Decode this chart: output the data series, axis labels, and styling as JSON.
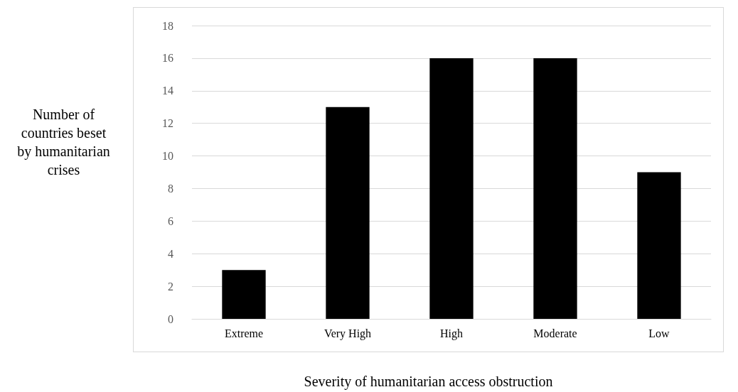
{
  "chart_data": {
    "type": "bar",
    "xlabel": "Severity of humanitarian access obstruction",
    "ylabel": "Number of countries beset by humanitarian crises",
    "categories": [
      "Extreme",
      "Very High",
      "High",
      "Moderate",
      "Low"
    ],
    "values": [
      3,
      13,
      16,
      16,
      9
    ],
    "color": "#000000",
    "ylim": [
      0,
      18
    ],
    "yticks": [
      0,
      2,
      4,
      6,
      8,
      10,
      12,
      14,
      16,
      18
    ],
    "grid": "y"
  }
}
